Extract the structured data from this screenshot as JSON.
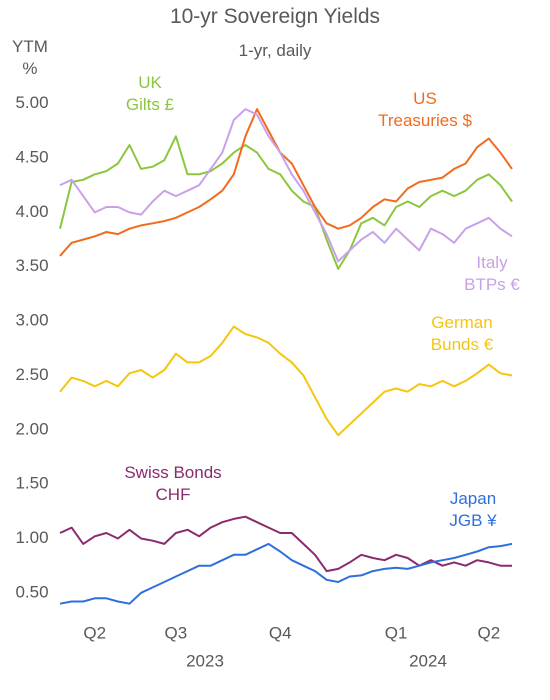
{
  "chart_data": {
    "type": "line",
    "title": "10-yr Sovereign Yields",
    "subtitle": "1-yr, daily",
    "y_label": "YTM\n%",
    "categories": [
      null,
      null,
      null,
      "Q2",
      null,
      null,
      null,
      null,
      null,
      null,
      "Q3",
      null,
      null,
      null,
      null,
      null,
      null,
      null,
      null,
      "Q4",
      null,
      null,
      null,
      null,
      null,
      null,
      null,
      null,
      null,
      "Q1",
      null,
      null,
      null,
      null,
      null,
      null,
      null,
      "Q2",
      null,
      null
    ],
    "year_labels": [
      "2023",
      "2024"
    ],
    "ylim": [
      0.25,
      5.08
    ],
    "yticks": [
      {
        "value": 5.0,
        "label": "5.00"
      },
      {
        "value": 4.5,
        "label": "4.50"
      },
      {
        "value": 4.0,
        "label": "4.00"
      },
      {
        "value": 3.5,
        "label": "3.50"
      },
      {
        "value": 3.0,
        "label": "3.00"
      },
      {
        "value": 2.5,
        "label": "2.50"
      },
      {
        "value": 2.0,
        "label": "2.00"
      },
      {
        "value": 1.5,
        "label": "1.50"
      },
      {
        "value": 1.0,
        "label": "1.00"
      },
      {
        "value": 0.5,
        "label": "0.50"
      }
    ],
    "grid": false,
    "series": [
      {
        "name": "UK\nGilts £",
        "color": "#8cc63e",
        "values": [
          3.85,
          4.28,
          4.3,
          4.35,
          4.38,
          4.45,
          4.62,
          4.4,
          4.42,
          4.48,
          4.7,
          4.35,
          4.35,
          4.38,
          4.45,
          4.55,
          4.62,
          4.55,
          4.4,
          4.35,
          4.2,
          4.1,
          4.05,
          3.75,
          3.48,
          3.65,
          3.9,
          3.95,
          3.88,
          4.05,
          4.1,
          4.05,
          4.15,
          4.2,
          4.15,
          4.2,
          4.3,
          4.35,
          4.25,
          4.1
        ]
      },
      {
        "name": "US\nTreasuries $",
        "color": "#f26b1d",
        "values": [
          3.6,
          3.72,
          3.75,
          3.78,
          3.82,
          3.8,
          3.85,
          3.88,
          3.9,
          3.92,
          3.95,
          4.0,
          4.05,
          4.12,
          4.2,
          4.35,
          4.7,
          4.95,
          4.75,
          4.55,
          4.45,
          4.25,
          4.05,
          3.9,
          3.85,
          3.88,
          3.95,
          4.05,
          4.12,
          4.1,
          4.22,
          4.28,
          4.3,
          4.32,
          4.4,
          4.45,
          4.6,
          4.68,
          4.55,
          4.4
        ]
      },
      {
        "name": "Italy\nBTPs €",
        "color": "#c9a0ea",
        "values": [
          4.25,
          4.3,
          4.15,
          4.0,
          4.05,
          4.05,
          4.0,
          3.98,
          4.1,
          4.2,
          4.15,
          4.2,
          4.25,
          4.4,
          4.55,
          4.85,
          4.95,
          4.9,
          4.7,
          4.55,
          4.35,
          4.2,
          4.0,
          3.8,
          3.55,
          3.65,
          3.75,
          3.82,
          3.72,
          3.85,
          3.75,
          3.65,
          3.85,
          3.8,
          3.72,
          3.85,
          3.9,
          3.95,
          3.85,
          3.78
        ]
      },
      {
        "name": "German\nBunds €",
        "color": "#f5c60f",
        "values": [
          2.35,
          2.48,
          2.45,
          2.4,
          2.45,
          2.4,
          2.52,
          2.55,
          2.48,
          2.55,
          2.7,
          2.62,
          2.62,
          2.68,
          2.8,
          2.95,
          2.88,
          2.85,
          2.8,
          2.7,
          2.62,
          2.5,
          2.3,
          2.1,
          1.95,
          2.05,
          2.15,
          2.25,
          2.35,
          2.38,
          2.35,
          2.42,
          2.4,
          2.45,
          2.4,
          2.45,
          2.52,
          2.6,
          2.52,
          2.5
        ]
      },
      {
        "name": "Swiss Bonds\nCHF",
        "color": "#8b2a6f",
        "values": [
          1.05,
          1.1,
          0.95,
          1.02,
          1.05,
          1.0,
          1.08,
          1.0,
          0.98,
          0.95,
          1.05,
          1.08,
          1.02,
          1.1,
          1.15,
          1.18,
          1.2,
          1.15,
          1.1,
          1.05,
          1.05,
          0.95,
          0.85,
          0.7,
          0.72,
          0.78,
          0.85,
          0.82,
          0.8,
          0.85,
          0.82,
          0.75,
          0.8,
          0.75,
          0.78,
          0.75,
          0.8,
          0.78,
          0.75,
          0.75
        ]
      },
      {
        "name": "Japan\nJGB ¥",
        "color": "#2f6fdc",
        "values": [
          0.4,
          0.42,
          0.42,
          0.45,
          0.45,
          0.42,
          0.4,
          0.5,
          0.55,
          0.6,
          0.65,
          0.7,
          0.75,
          0.75,
          0.8,
          0.85,
          0.85,
          0.9,
          0.95,
          0.88,
          0.8,
          0.75,
          0.7,
          0.62,
          0.6,
          0.65,
          0.66,
          0.7,
          0.72,
          0.73,
          0.72,
          0.75,
          0.78,
          0.8,
          0.82,
          0.85,
          0.88,
          0.92,
          0.93,
          0.95
        ]
      }
    ]
  }
}
